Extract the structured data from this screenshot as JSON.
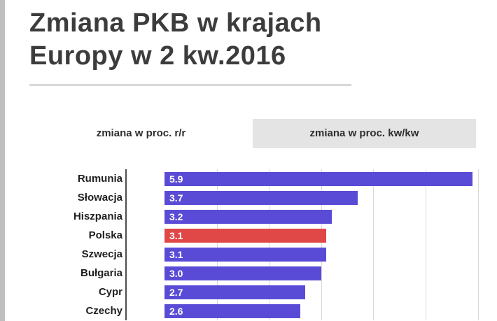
{
  "page": {
    "title_line1": "Zmiana PKB w krajach",
    "title_line2": "Europy w 2 kw.2016"
  },
  "tabs": [
    {
      "label": "zmiana w proc. r/r",
      "active": true
    },
    {
      "label": "zmiana w proc. kw/kw",
      "active": false
    }
  ],
  "chart_data": {
    "type": "bar",
    "orientation": "horizontal",
    "categories": [
      "Rumunia",
      "Słowacja",
      "Hiszpania",
      "Polska",
      "Szwecja",
      "Bułgaria",
      "Cypr",
      "Czechy"
    ],
    "values": [
      5.9,
      3.7,
      3.2,
      3.1,
      3.1,
      3.0,
      2.7,
      2.6
    ],
    "value_labels": [
      "5.9",
      "3.7",
      "3.2",
      "3.1",
      "3.1",
      "3.0",
      "2.7",
      "2.6"
    ],
    "highlight_index": 3,
    "highlight_category": "Polska",
    "bar_color": "#5a4bd6",
    "highlight_color": "#e04848",
    "xlim": [
      0,
      6.3
    ],
    "grid_interval": 1,
    "grid": true,
    "legend": false,
    "title": "Zmiana PKB w krajach Europy w 2 kw.2016",
    "xlabel": "",
    "ylabel": ""
  }
}
